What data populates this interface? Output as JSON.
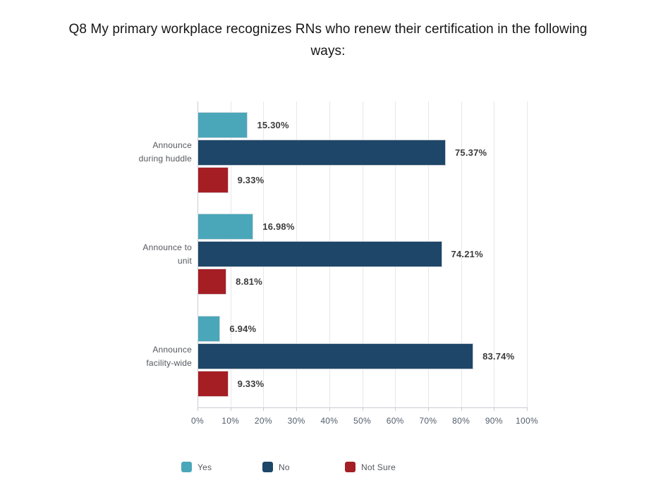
{
  "chart_data": {
    "type": "bar",
    "orientation": "horizontal",
    "title": "Q8 My primary workplace recognizes RNs who renew their certification in the following ways:",
    "title_lines": [
      "Q8 My primary workplace recognizes RNs who renew their certification in the following",
      "ways:"
    ],
    "categories": [
      "Announce during huddle",
      "Announce to unit",
      "Announce facility-wide"
    ],
    "category_label_lines": [
      [
        "Announce",
        "during huddle"
      ],
      [
        "Announce to",
        "unit"
      ],
      [
        "Announce",
        "facility-wide"
      ]
    ],
    "series": [
      {
        "name": "Yes",
        "color": "#4aa7b9",
        "values": [
          15.3,
          16.98,
          6.94
        ],
        "value_labels": [
          "15.30%",
          "16.98%",
          "6.94%"
        ]
      },
      {
        "name": "No",
        "color": "#1e4668",
        "values": [
          75.37,
          74.21,
          83.74
        ],
        "value_labels": [
          "75.37%",
          "74.21%",
          "83.74%"
        ]
      },
      {
        "name": "Not Sure",
        "color": "#a41e24",
        "values": [
          9.33,
          8.81,
          9.33
        ],
        "value_labels": [
          "9.33%",
          "8.81%",
          "9.33%"
        ]
      }
    ],
    "x_ticks": [
      "0%",
      "10%",
      "20%",
      "30%",
      "40%",
      "50%",
      "60%",
      "70%",
      "80%",
      "90%",
      "100%"
    ],
    "xlim": [
      0,
      100
    ],
    "grid": "vertical",
    "legend_position": "bottom"
  },
  "colors": {
    "background": "#ffffff",
    "gridline": "#e6e7ea",
    "axis": "#c9ccd1",
    "tick_label": "#525d6b",
    "category_label": "#55585e",
    "value_label": "#3c3c3e",
    "title": "#161616"
  }
}
